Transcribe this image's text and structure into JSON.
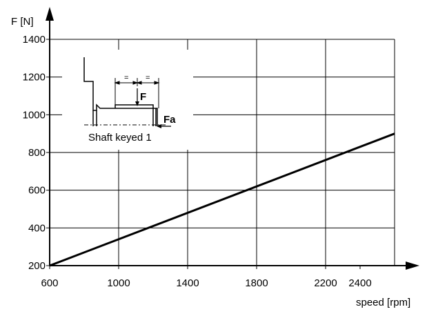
{
  "chart_data": {
    "type": "line",
    "title": "",
    "xlabel": "speed [rpm]",
    "ylabel": "F [N]",
    "xlim": [
      600,
      2600
    ],
    "ylim": [
      200,
      1400
    ],
    "x_ticks": [
      "600",
      "1000",
      "1400",
      "1800",
      "2200",
      "2400"
    ],
    "x_tick_values": [
      600,
      1000,
      1400,
      1800,
      2200,
      2400
    ],
    "y_ticks": [
      "200",
      "400",
      "600",
      "800",
      "1000",
      "1200",
      "1400"
    ],
    "y_tick_values": [
      200,
      400,
      600,
      800,
      1000,
      1200,
      1400
    ],
    "x_gridlines": [
      600,
      1000,
      1400,
      1800,
      2200,
      2600
    ],
    "y_gridlines": [
      200,
      400,
      600,
      800,
      1000,
      1200,
      1400
    ],
    "grid": true,
    "series": [
      {
        "x": [
          600,
          2600
        ],
        "y": [
          200,
          900
        ],
        "color": "#000000"
      }
    ],
    "inset": {
      "caption": "Shaft keyed 1",
      "force_label": "F",
      "axial_label": "Fa",
      "dimension_marks": [
        "=",
        "="
      ]
    }
  }
}
